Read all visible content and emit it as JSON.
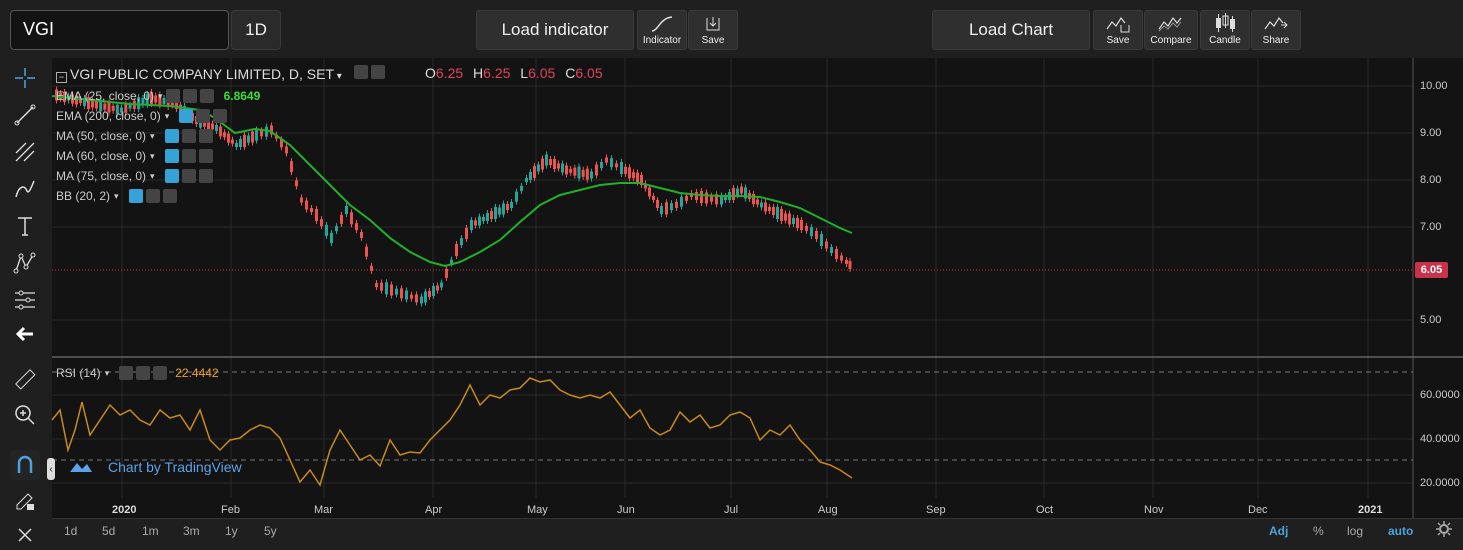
{
  "toolbar": {
    "symbol": "VGI",
    "timeframe": "1D",
    "load_indicator": "Load indicator",
    "indicator_label": "Indicator",
    "save_label": "Save",
    "load_chart": "Load Chart",
    "chart_save_label": "Save",
    "compare_label": "Compare",
    "candle_label": "Candle",
    "share_label": "Share"
  },
  "legend": {
    "title": "VGI PUBLIC COMPANY LIMITED, D, SET",
    "o_label": "O",
    "o_value": "6.25",
    "h_label": "H",
    "h_value": "6.25",
    "l_label": "L",
    "l_value": "6.05",
    "c_label": "C",
    "c_value": "6.05",
    "indicators": [
      {
        "label": "EMA (25, close, 0)",
        "value": "6.8649"
      },
      {
        "label": "EMA (200, close, 0)",
        "value": ""
      },
      {
        "label": "MA (50, close, 0)",
        "value": ""
      },
      {
        "label": "MA (60, close, 0)",
        "value": ""
      },
      {
        "label": "MA (75, close, 0)",
        "value": ""
      },
      {
        "label": "BB (20, 2)",
        "value": ""
      }
    ],
    "rsi_label": "RSI (14)",
    "rsi_value": "22.4442"
  },
  "price_axis": [
    "10.00",
    "9.00",
    "8.00",
    "7.00",
    "6.05",
    "5.00"
  ],
  "last_price": "6.05",
  "rsi_axis": [
    "60.0000",
    "40.0000",
    "20.0000"
  ],
  "time_axis": [
    "2020",
    "Feb",
    "Mar",
    "Apr",
    "May",
    "Jun",
    "Jul",
    "Aug",
    "Sep",
    "Oct",
    "Nov",
    "Dec",
    "2021"
  ],
  "watermark": "Chart by TradingView",
  "bottom": {
    "ranges": [
      "1d",
      "5d",
      "1m",
      "3m",
      "1y",
      "5y"
    ],
    "adj": "Adj",
    "percent": "%",
    "log": "log",
    "auto": "auto"
  },
  "colors": {
    "up": "#26a69a",
    "down": "#ef5350",
    "ema": "#22b02a",
    "rsi": "#c88a1a",
    "value_red": "#e0455c",
    "value_green": "#3fdc3f",
    "value_orange": "#f0a030"
  }
}
